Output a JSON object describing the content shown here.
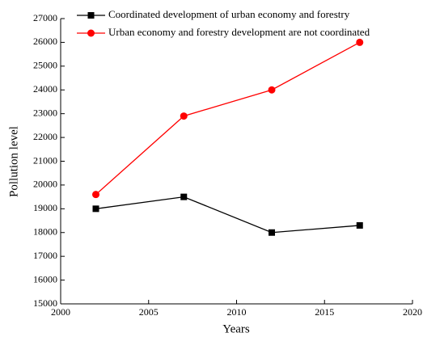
{
  "chart_data": {
    "type": "line",
    "x_label": "Years",
    "y_label": "Pollution level",
    "x": [
      2002,
      2007,
      2012,
      2017
    ],
    "series": [
      {
        "name": "Coordinated development of urban economy and forestry",
        "color": "#000000",
        "marker": "square",
        "values": [
          19000,
          19500,
          18000,
          18300
        ]
      },
      {
        "name": "Urban economy and forestry development are not coordinated",
        "color": "#ff0000",
        "marker": "circle",
        "values": [
          19600,
          22900,
          24000,
          26000
        ]
      }
    ],
    "xlim": [
      2000,
      2020
    ],
    "xticks": [
      2000,
      2005,
      2010,
      2015,
      2020
    ],
    "ylim": [
      15000,
      27000
    ],
    "yticks": [
      15000,
      16000,
      17000,
      18000,
      19000,
      20000,
      21000,
      22000,
      23000,
      24000,
      25000,
      26000,
      27000
    ],
    "legend": "upper left",
    "grid": false
  }
}
